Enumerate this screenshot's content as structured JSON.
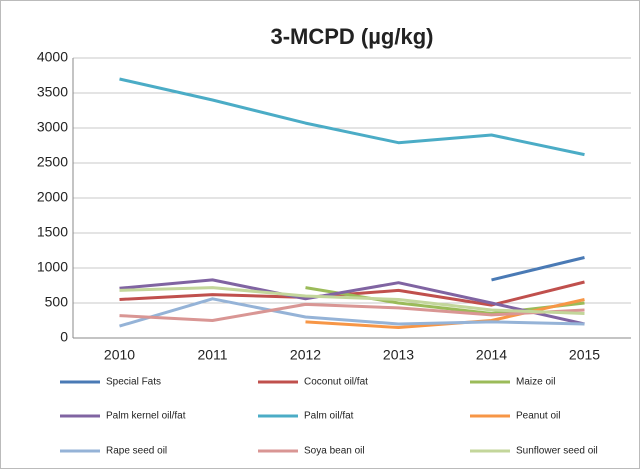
{
  "chart_data": {
    "type": "line",
    "title": "3-MCPD (µg/kg)",
    "categories": [
      "2010",
      "2011",
      "2012",
      "2013",
      "2014",
      "2015"
    ],
    "ylim": [
      0,
      4000
    ],
    "yticks": [
      0,
      500,
      1000,
      1500,
      2000,
      2500,
      3000,
      3500,
      4000
    ],
    "grid": true,
    "legend": "bottom",
    "series": [
      {
        "name": "Special Fats",
        "color": "#4a7ab5",
        "values": [
          null,
          null,
          null,
          null,
          830,
          1150
        ]
      },
      {
        "name": "Coconut oil/fat",
        "color": "#c0504d",
        "values": [
          550,
          620,
          580,
          680,
          470,
          800
        ]
      },
      {
        "name": "Maize oil",
        "color": "#9bbb59",
        "values": [
          null,
          null,
          720,
          500,
          350,
          500
        ]
      },
      {
        "name": "Palm kernel oil/fat",
        "color": "#8064a2",
        "values": [
          710,
          830,
          560,
          790,
          500,
          200
        ]
      },
      {
        "name": "Palm oil/fat",
        "color": "#4bacc6",
        "values": [
          3700,
          3400,
          3070,
          2790,
          2900,
          2620
        ]
      },
      {
        "name": "Peanut oil",
        "color": "#f79646",
        "values": [
          null,
          null,
          230,
          150,
          250,
          550
        ]
      },
      {
        "name": "Rape seed oil",
        "color": "#95b3d7",
        "values": [
          170,
          560,
          300,
          200,
          230,
          200
        ]
      },
      {
        "name": "Soya bean oil",
        "color": "#d99694",
        "values": [
          320,
          250,
          480,
          430,
          330,
          400
        ]
      },
      {
        "name": "Sunflower seed oil",
        "color": "#c3d69b",
        "values": [
          680,
          720,
          600,
          550,
          400,
          350
        ]
      }
    ]
  }
}
